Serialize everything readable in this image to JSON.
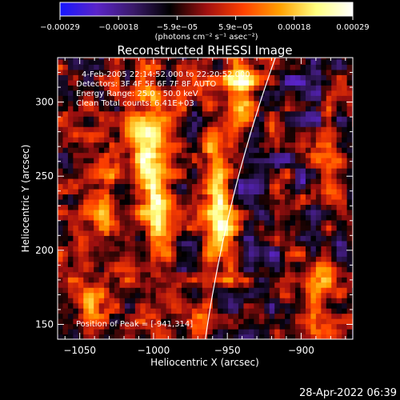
{
  "chart_data": {
    "type": "heatmap",
    "title": "Reconstructed RHESSI Image",
    "xlabel": "Heliocentric X (arcsec)",
    "ylabel": "Heliocentric Y (arcsec)",
    "xlim": [
      -1065,
      -865
    ],
    "ylim": [
      140,
      330
    ],
    "xticks": [
      -1050,
      -1000,
      -950,
      -900
    ],
    "xtick_labels": [
      "−1050",
      "−1000",
      "−950",
      "−900"
    ],
    "yticks": [
      150,
      200,
      250,
      300
    ],
    "ytick_labels": [
      "150",
      "200",
      "250",
      "300"
    ],
    "colorbar": {
      "range": [
        -0.00029,
        0.00029
      ],
      "tick_labels": [
        "−0.00029",
        "−0.00018",
        "−5.9e−05",
        "5.9e−05",
        "0.00018",
        "0.00029"
      ],
      "unit_label": "(photons cm⁻² s⁻¹ asec⁻²)",
      "colors": [
        "#1616ff",
        "#5a24c8",
        "#3a1a6a",
        "#000000",
        "#a01010",
        "#ff4000",
        "#ffa000",
        "#ffff80",
        "#ffffff"
      ]
    },
    "annotations": [
      "4-Feb-2005 22:14:52.000 to 22:20:52.000",
      "Detectors: 3F 4F 5F 6F 7F 8F AUTO",
      "Energy Range: 25.0 - 50.0 keV",
      "Clean     Total counts: 6.41E+03"
    ],
    "peak_label": "Position of Peak = [-941,314]",
    "peak": [
      -941,
      314
    ],
    "hotspots": [
      {
        "x": -1033,
        "y": 232,
        "sx": 7,
        "sy": 24,
        "amp": 0.00016
      },
      {
        "x": -1003,
        "y": 272,
        "sx": 9,
        "sy": 26,
        "amp": 0.00028
      },
      {
        "x": -997,
        "y": 218,
        "sx": 8,
        "sy": 14,
        "amp": 0.0002
      },
      {
        "x": -1050,
        "y": 205,
        "sx": 6,
        "sy": 16,
        "amp": 0.00015
      },
      {
        "x": -1040,
        "y": 165,
        "sx": 8,
        "sy": 8,
        "amp": 0.00014
      },
      {
        "x": -985,
        "y": 160,
        "sx": 7,
        "sy": 10,
        "amp": 0.00013
      },
      {
        "x": -958,
        "y": 240,
        "sx": 7,
        "sy": 32,
        "amp": 0.00024
      },
      {
        "x": -948,
        "y": 200,
        "sx": 7,
        "sy": 18,
        "amp": 0.00022
      },
      {
        "x": -942,
        "y": 312,
        "sx": 7,
        "sy": 16,
        "amp": 0.00029
      },
      {
        "x": -920,
        "y": 285,
        "sx": 7,
        "sy": 12,
        "amp": 0.00017
      },
      {
        "x": -910,
        "y": 232,
        "sx": 6,
        "sy": 14,
        "amp": 0.00014
      },
      {
        "x": -890,
        "y": 175,
        "sx": 8,
        "sy": 14,
        "amp": 0.00022
      },
      {
        "x": -880,
        "y": 258,
        "sx": 5,
        "sy": 12,
        "amp": 0.00013
      },
      {
        "x": -965,
        "y": 158,
        "sx": 6,
        "sy": 10,
        "amp": 0.00015
      }
    ]
  },
  "footer": {
    "timestamp": "28-Apr-2022 06:39"
  }
}
